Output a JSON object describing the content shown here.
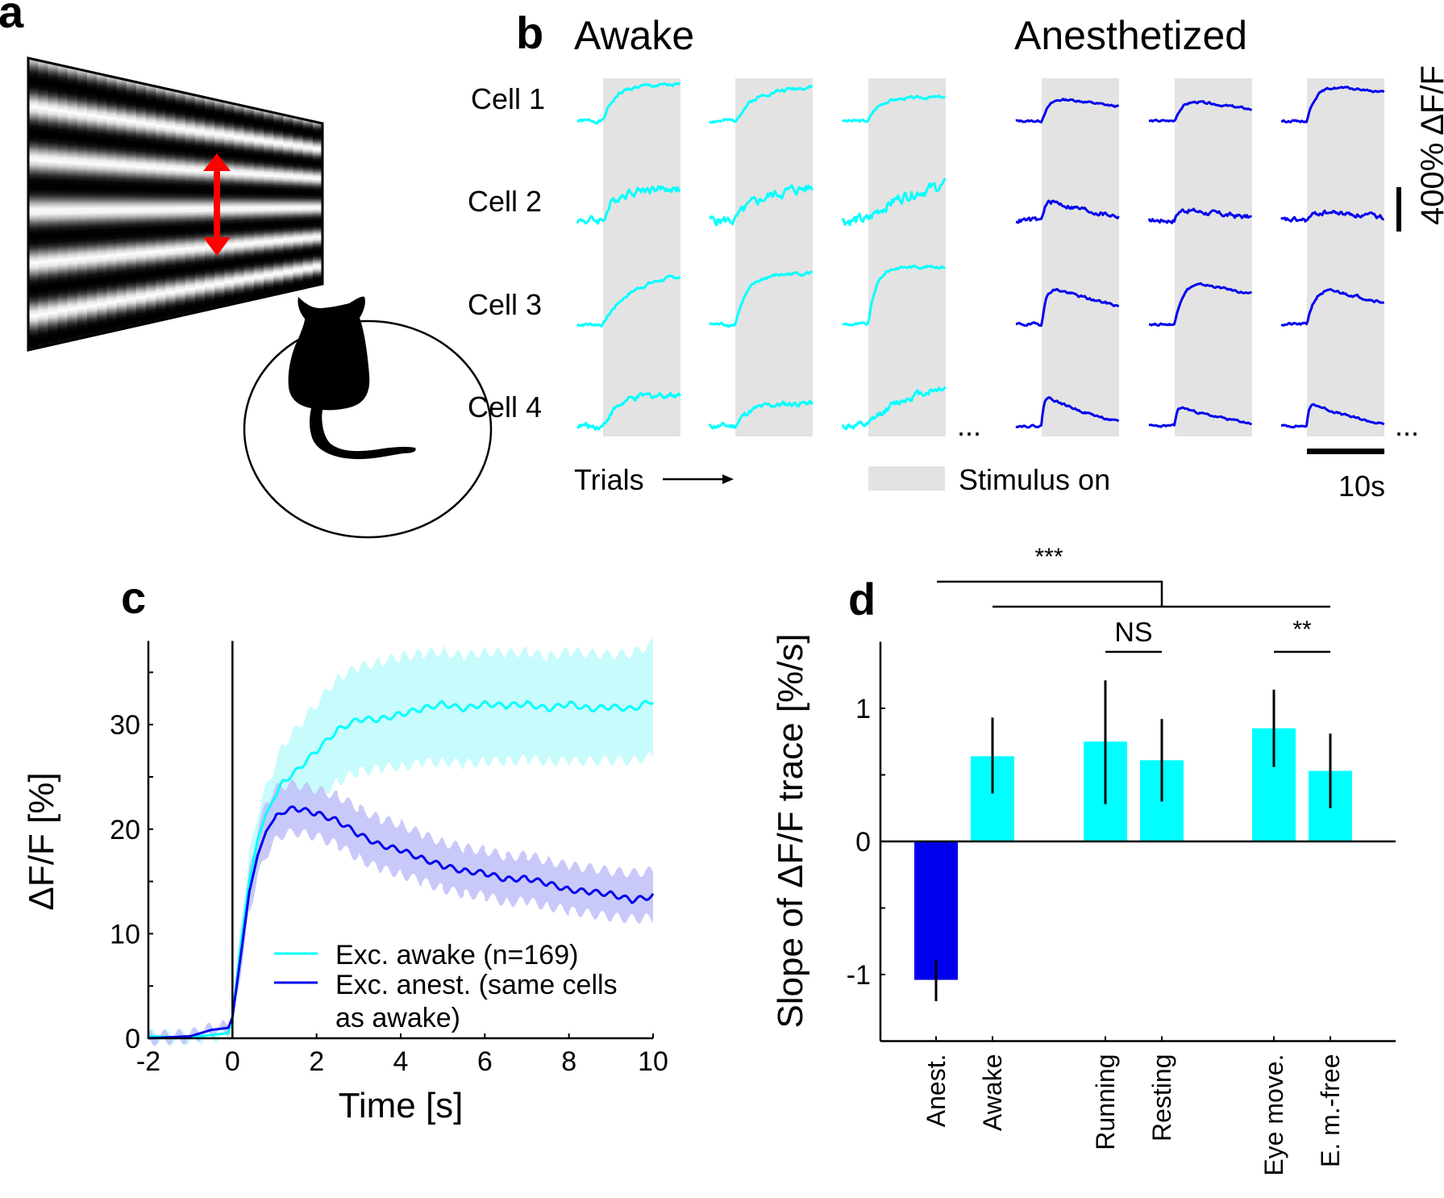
{
  "figure": {
    "panel_labels": {
      "a": "a",
      "b": "b",
      "c": "c",
      "d": "d"
    },
    "colors": {
      "awake": "#00ffff",
      "anest": "#0000ee",
      "awake_band": "#c8fbfb",
      "anest_band": "#c0c0f8",
      "stimulus_gray": "#e3e3e3",
      "arrow_red": "#ff0000",
      "black": "#000000"
    }
  },
  "panel_a": {
    "icons": [
      "drifting-grating-screen-icon",
      "motion-direction-arrow-icon",
      "mouse-silhouette-icon",
      "treadmill-ball-icon"
    ]
  },
  "panel_b": {
    "headings": {
      "awake": "Awake",
      "anesthetized": "Anesthetized"
    },
    "cells": [
      "Cell 1",
      "Cell 2",
      "Cell 3",
      "Cell 4"
    ],
    "trials_label": "Trials",
    "ellipsis": "...",
    "legend_stimulus": "Stimulus on",
    "scale_time": "10s",
    "scale_amplitude": "400% ΔF/F",
    "traces": {
      "awake": [
        [
          {
            "rise": 0.62,
            "tau": 0.15,
            "decay": 0,
            "noise": 0.05,
            "seed": 1
          },
          {
            "rise": 0.5,
            "tau": 0.2,
            "decay": -0.4,
            "noise": 0.05,
            "seed": 2
          },
          {
            "rise": 0.38,
            "tau": 0.12,
            "decay": -0.2,
            "noise": 0.04,
            "seed": 3
          }
        ],
        [
          {
            "rise": 0.55,
            "tau": 0.15,
            "decay": 0,
            "noise": 0.12,
            "seed": 4
          },
          {
            "rise": 0.45,
            "tau": 0.25,
            "decay": -0.6,
            "noise": 0.14,
            "seed": 5
          },
          {
            "rise": 0.45,
            "tau": 0.3,
            "decay": -0.8,
            "noise": 0.15,
            "seed": 6
          }
        ],
        [
          {
            "rise": 0.75,
            "tau": 0.3,
            "decay": -0.3,
            "noise": 0.05,
            "seed": 7
          },
          {
            "rise": 0.85,
            "tau": 0.15,
            "decay": -0.1,
            "noise": 0.05,
            "seed": 8
          },
          {
            "rise": 1.0,
            "tau": 0.1,
            "decay": 0,
            "noise": 0.04,
            "seed": 9
          }
        ],
        [
          {
            "rise": 0.55,
            "tau": 0.2,
            "decay": 0,
            "noise": 0.09,
            "seed": 10
          },
          {
            "rise": 0.35,
            "tau": 0.15,
            "decay": -0.3,
            "noise": 0.08,
            "seed": 11
          },
          {
            "rise": 0.55,
            "tau": 0.35,
            "decay": -0.6,
            "noise": 0.1,
            "seed": 12
          }
        ]
      ],
      "anest": [
        [
          {
            "rise": 0.55,
            "tau": 0.12,
            "decay": 0.55,
            "noise": 0.03,
            "seed": 13
          },
          {
            "rise": 0.5,
            "tau": 0.12,
            "decay": 0.6,
            "noise": 0.03,
            "seed": 14
          },
          {
            "rise": 0.72,
            "tau": 0.12,
            "decay": 0.3,
            "noise": 0.03,
            "seed": 15
          }
        ],
        [
          {
            "rise": 0.45,
            "tau": 0.05,
            "decay": 0.85,
            "noise": 0.07,
            "seed": 16
          },
          {
            "rise": 0.25,
            "tau": 0.05,
            "decay": 0.8,
            "noise": 0.07,
            "seed": 17
          },
          {
            "rise": 0.25,
            "tau": 0.15,
            "decay": 0.8,
            "noise": 0.07,
            "seed": 18
          }
        ],
        [
          {
            "rise": 0.8,
            "tau": 0.06,
            "decay": 0.6,
            "noise": 0.04,
            "seed": 19
          },
          {
            "rise": 0.95,
            "tau": 0.12,
            "decay": 0.45,
            "noise": 0.03,
            "seed": 20
          },
          {
            "rise": 0.85,
            "tau": 0.12,
            "decay": 0.55,
            "noise": 0.04,
            "seed": 21
          }
        ],
        [
          {
            "rise": 0.65,
            "tau": 0.03,
            "decay": 0.9,
            "noise": 0.03,
            "seed": 22
          },
          {
            "rise": 0.42,
            "tau": 0.03,
            "decay": 0.9,
            "noise": 0.03,
            "seed": 23
          },
          {
            "rise": 0.5,
            "tau": 0.03,
            "decay": 0.95,
            "noise": 0.03,
            "seed": 24
          }
        ]
      ]
    }
  },
  "chart_data": [
    {
      "panel": "c",
      "type": "line",
      "title": "",
      "xlabel": "Time [s]",
      "ylabel": "ΔF/F [%]",
      "xlim": [
        -2,
        10
      ],
      "ylim": [
        0,
        38
      ],
      "xticks": [
        -2,
        0,
        2,
        4,
        6,
        8,
        10
      ],
      "yticks": [
        0,
        10,
        20,
        30
      ],
      "yticks_minor": [
        5,
        15,
        25,
        35
      ],
      "stimulus_onset_line_x": 0,
      "legend_position": "bottom-right",
      "series": [
        {
          "name": "Exc. awake (n=169)",
          "color": "#00ffff",
          "x": [
            -2,
            -1.5,
            -1,
            -0.5,
            -0.1,
            0,
            0.2,
            0.4,
            0.6,
            0.8,
            1.0,
            1.2,
            1.5,
            2.0,
            2.5,
            3.0,
            3.5,
            4.0,
            4.5,
            5.0,
            5.5,
            6.0,
            6.5,
            7.0,
            7.5,
            8.0,
            8.5,
            9.0,
            9.5,
            10.0
          ],
          "y": [
            0.2,
            0.1,
            0.1,
            0.3,
            0.5,
            2.0,
            9.0,
            15.0,
            19.0,
            21.5,
            23.0,
            24.5,
            25.5,
            27.5,
            29.5,
            30.5,
            30.5,
            31.0,
            31.5,
            32.0,
            31.5,
            32.0,
            31.8,
            32.0,
            31.5,
            32.0,
            31.5,
            31.7,
            31.5,
            32.3
          ],
          "upper": [
            0.5,
            0.4,
            0.4,
            0.6,
            0.8,
            2.5,
            11.0,
            17.5,
            21.5,
            24.0,
            26.0,
            28.0,
            29.5,
            32.0,
            34.5,
            35.5,
            36.0,
            36.5,
            36.8,
            37.0,
            36.5,
            37.0,
            36.8,
            37.0,
            36.5,
            37.0,
            36.8,
            36.7,
            36.8,
            37.8
          ],
          "lower": [
            -0.1,
            -0.2,
            -0.2,
            0.0,
            0.2,
            1.5,
            7.0,
            12.5,
            16.5,
            19.0,
            20.5,
            21.5,
            22.0,
            23.0,
            24.5,
            25.5,
            25.8,
            26.0,
            26.3,
            26.5,
            26.2,
            26.5,
            26.5,
            26.7,
            26.5,
            26.5,
            26.5,
            26.6,
            26.5,
            27.0
          ]
        },
        {
          "name": "Exc. anest. (same cells as awake)",
          "color": "#0000ee",
          "x": [
            -2,
            -1.5,
            -1,
            -0.5,
            -0.1,
            0,
            0.2,
            0.4,
            0.6,
            0.8,
            1.0,
            1.2,
            1.5,
            2.0,
            2.5,
            3.0,
            3.5,
            4.0,
            4.5,
            5.0,
            5.5,
            6.0,
            6.5,
            7.0,
            7.5,
            8.0,
            8.5,
            9.0,
            9.5,
            10.0
          ],
          "y": [
            0.0,
            0.1,
            0.2,
            0.8,
            1.0,
            2.0,
            8.0,
            14.0,
            17.5,
            19.8,
            21.0,
            21.7,
            22.0,
            21.5,
            20.8,
            19.5,
            18.5,
            18.0,
            17.2,
            16.5,
            16.0,
            15.8,
            15.2,
            15.3,
            14.8,
            14.2,
            14.0,
            13.8,
            13.2,
            13.6
          ],
          "upper": [
            0.3,
            0.4,
            0.5,
            1.1,
            1.3,
            2.5,
            9.5,
            16.0,
            20.0,
            22.5,
            23.8,
            24.2,
            24.3,
            23.8,
            23.2,
            22.0,
            21.0,
            20.5,
            19.5,
            18.8,
            18.2,
            18.0,
            17.4,
            17.5,
            17.0,
            16.5,
            16.3,
            16.0,
            15.8,
            16.0
          ],
          "lower": [
            -0.3,
            -0.2,
            -0.1,
            0.5,
            0.7,
            1.5,
            6.5,
            12.0,
            15.5,
            17.5,
            18.8,
            19.5,
            19.7,
            19.3,
            18.5,
            17.2,
            16.2,
            15.7,
            15.0,
            14.3,
            13.8,
            13.6,
            13.0,
            13.1,
            12.6,
            12.2,
            11.9,
            11.6,
            11.4,
            11.5
          ]
        }
      ],
      "legend": [
        "Exc. awake (n=169)",
        "Exc. anest. (same cells",
        "as awake)"
      ]
    },
    {
      "panel": "d",
      "type": "bar",
      "title": "",
      "xlabel": "",
      "ylabel": "Slope of ΔF/F trace [%/s]",
      "ylim": [
        -1.5,
        1.5
      ],
      "yticks": [
        -1,
        0,
        1
      ],
      "yticks_minor": [
        -0.5,
        0.5
      ],
      "categories": [
        "Anest.",
        "Awake",
        "Running",
        "Resting",
        "Eye move.",
        "E. m.-free"
      ],
      "values": [
        -1.04,
        0.64,
        0.75,
        0.61,
        0.85,
        0.53
      ],
      "error_low": [
        -1.2,
        0.36,
        0.28,
        0.3,
        0.56,
        0.25
      ],
      "error_high": [
        -0.89,
        0.93,
        1.21,
        0.92,
        1.14,
        0.81
      ],
      "bar_colors": [
        "#0000ee",
        "#00ffff",
        "#00ffff",
        "#00ffff",
        "#00ffff",
        "#00ffff"
      ],
      "significance": [
        {
          "label": "***",
          "between": [
            "Anest.",
            "Awake + Running + Resting + Eye move. + E. m.-free"
          ]
        },
        {
          "label": "NS",
          "between": [
            "Running",
            "Resting"
          ]
        },
        {
          "label": "**",
          "between": [
            "Eye move.",
            "E. m.-free"
          ]
        }
      ]
    }
  ]
}
